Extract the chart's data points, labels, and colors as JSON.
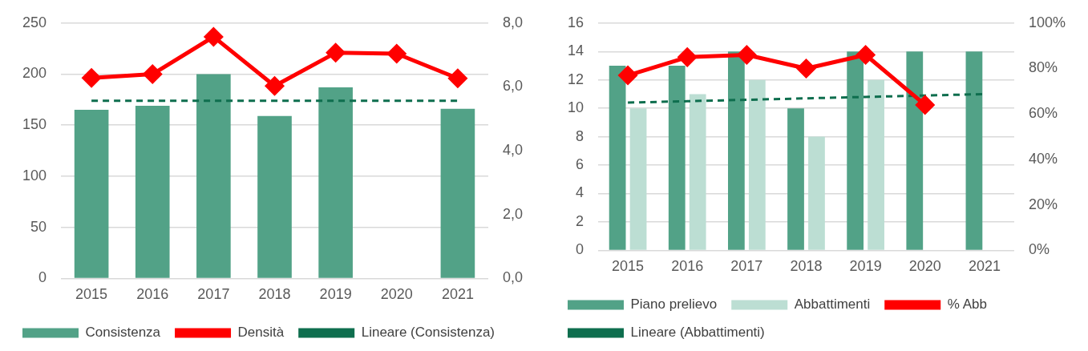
{
  "chart_data": [
    {
      "type": "bar",
      "categories": [
        "2015",
        "2016",
        "2017",
        "2018",
        "2019",
        "2020",
        "2021"
      ],
      "ylim": [
        0,
        250
      ],
      "yticks": [
        0,
        50,
        100,
        150,
        200,
        250
      ],
      "y2lim": [
        0,
        8
      ],
      "y2ticks": [
        {
          "value": 0,
          "label": "0,0"
        },
        {
          "value": 2,
          "label": "2,0"
        },
        {
          "value": 4,
          "label": "4,0"
        },
        {
          "value": 6,
          "label": "6,0"
        },
        {
          "value": 8,
          "label": "8,0"
        }
      ],
      "grid": "y",
      "legend": "bottom",
      "series": [
        {
          "name": "Consistenza",
          "color": "#52a287",
          "values": [
            165,
            169,
            200,
            159,
            187,
            null,
            166
          ]
        },
        {
          "name": "Densità",
          "type": "line",
          "axis": "y2",
          "color": "#ff0000",
          "marker": "diamond",
          "line_style": "solid",
          "values": [
            6.28,
            6.4,
            7.57,
            6.03,
            7.07,
            7.04,
            6.27
          ]
        },
        {
          "name": "Lineare (Consistenza)",
          "type": "line",
          "color": "#0e6e4e",
          "marker": "none",
          "line_style": "dashed",
          "values": [
            174,
            174,
            174,
            174,
            174,
            174,
            174
          ]
        }
      ]
    },
    {
      "type": "bar",
      "categories": [
        "2015",
        "2016",
        "2017",
        "2018",
        "2019",
        "2020",
        "2021"
      ],
      "ylim": [
        0,
        16
      ],
      "yticks": [
        0,
        2,
        4,
        6,
        8,
        10,
        12,
        14,
        16
      ],
      "y2lim": [
        0,
        100
      ],
      "y2ticks": [
        {
          "value": 0,
          "label": "0%"
        },
        {
          "value": 20,
          "label": "20%"
        },
        {
          "value": 40,
          "label": "40%"
        },
        {
          "value": 60,
          "label": "60%"
        },
        {
          "value": 80,
          "label": "80%"
        },
        {
          "value": 100,
          "label": "100%"
        }
      ],
      "grid": "y",
      "legend": "bottom",
      "series": [
        {
          "name": "Piano prelievo",
          "color": "#52a287",
          "values": [
            13,
            13,
            14,
            10,
            14,
            14,
            14
          ]
        },
        {
          "name": "Abbattimenti",
          "color": "#bcded3",
          "values": [
            10,
            11,
            12,
            8,
            12,
            null,
            null
          ]
        },
        {
          "name": "% Abb",
          "type": "line",
          "axis": "y2",
          "color": "#ff0000",
          "marker": "diamond",
          "line_style": "solid",
          "values": [
            77,
            85,
            86,
            80,
            86,
            64,
            null
          ]
        },
        {
          "name": "Lineare (Abbattimenti)",
          "type": "line",
          "color": "#0e6e4e",
          "marker": "none",
          "line_style": "dashed",
          "values": [
            10.4,
            10.5,
            10.6,
            10.7,
            10.8,
            10.9,
            11.0
          ]
        }
      ]
    }
  ]
}
